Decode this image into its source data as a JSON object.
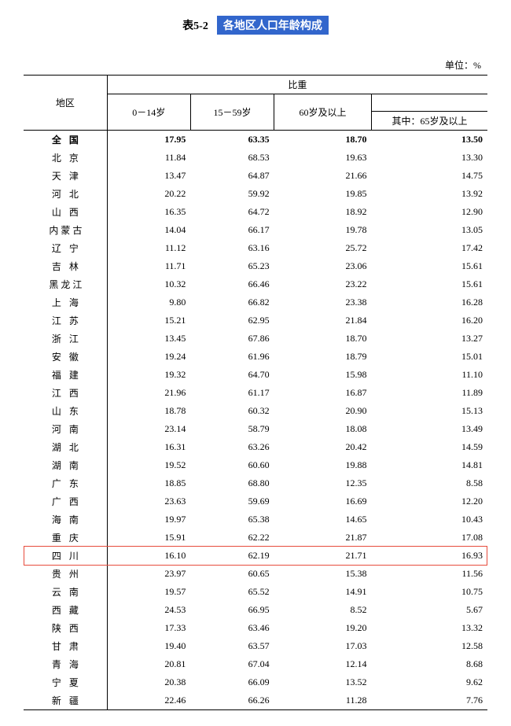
{
  "title_prefix": "表5-2",
  "title_main": "各地区人口年龄构成",
  "unit": "单位：%",
  "header": {
    "region": "地区",
    "proportion": "比重",
    "c0_14": "0－14岁",
    "c15_59": "15－59岁",
    "c60up": "60岁及以上",
    "c65up": "其中：65岁及以上"
  },
  "highlight_region": "四 川",
  "highlight_color": "#e74c3c",
  "title_bg": "#3266cc",
  "rows": [
    {
      "region": "全 国",
      "spacing": "spaced",
      "bold": true,
      "v": [
        "17.95",
        "63.35",
        "18.70",
        "13.50"
      ]
    },
    {
      "region": "北 京",
      "spacing": "spaced",
      "v": [
        "11.84",
        "68.53",
        "19.63",
        "13.30"
      ]
    },
    {
      "region": "天 津",
      "spacing": "spaced",
      "v": [
        "13.47",
        "64.87",
        "21.66",
        "14.75"
      ]
    },
    {
      "region": "河 北",
      "spacing": "spaced",
      "v": [
        "20.22",
        "59.92",
        "19.85",
        "13.92"
      ]
    },
    {
      "region": "山 西",
      "spacing": "spaced",
      "v": [
        "16.35",
        "64.72",
        "18.92",
        "12.90"
      ]
    },
    {
      "region": "内蒙古",
      "spacing": "spaced3",
      "v": [
        "14.04",
        "66.17",
        "19.78",
        "13.05"
      ]
    },
    {
      "region": "辽 宁",
      "spacing": "spaced",
      "v": [
        "11.12",
        "63.16",
        "25.72",
        "17.42"
      ]
    },
    {
      "region": "吉 林",
      "spacing": "spaced",
      "v": [
        "11.71",
        "65.23",
        "23.06",
        "15.61"
      ]
    },
    {
      "region": "黑龙江",
      "spacing": "spaced3",
      "v": [
        "10.32",
        "66.46",
        "23.22",
        "15.61"
      ]
    },
    {
      "region": "上 海",
      "spacing": "spaced",
      "v": [
        "9.80",
        "66.82",
        "23.38",
        "16.28"
      ]
    },
    {
      "region": "江 苏",
      "spacing": "spaced",
      "v": [
        "15.21",
        "62.95",
        "21.84",
        "16.20"
      ]
    },
    {
      "region": "浙 江",
      "spacing": "spaced",
      "v": [
        "13.45",
        "67.86",
        "18.70",
        "13.27"
      ]
    },
    {
      "region": "安 徽",
      "spacing": "spaced",
      "v": [
        "19.24",
        "61.96",
        "18.79",
        "15.01"
      ]
    },
    {
      "region": "福 建",
      "spacing": "spaced",
      "v": [
        "19.32",
        "64.70",
        "15.98",
        "11.10"
      ]
    },
    {
      "region": "江 西",
      "spacing": "spaced",
      "v": [
        "21.96",
        "61.17",
        "16.87",
        "11.89"
      ]
    },
    {
      "region": "山 东",
      "spacing": "spaced",
      "v": [
        "18.78",
        "60.32",
        "20.90",
        "15.13"
      ]
    },
    {
      "region": "河 南",
      "spacing": "spaced",
      "v": [
        "23.14",
        "58.79",
        "18.08",
        "13.49"
      ]
    },
    {
      "region": "湖 北",
      "spacing": "spaced",
      "v": [
        "16.31",
        "63.26",
        "20.42",
        "14.59"
      ]
    },
    {
      "region": "湖 南",
      "spacing": "spaced",
      "v": [
        "19.52",
        "60.60",
        "19.88",
        "14.81"
      ]
    },
    {
      "region": "广 东",
      "spacing": "spaced",
      "v": [
        "18.85",
        "68.80",
        "12.35",
        "8.58"
      ]
    },
    {
      "region": "广 西",
      "spacing": "spaced",
      "v": [
        "23.63",
        "59.69",
        "16.69",
        "12.20"
      ]
    },
    {
      "region": "海 南",
      "spacing": "spaced",
      "v": [
        "19.97",
        "65.38",
        "14.65",
        "10.43"
      ]
    },
    {
      "region": "重 庆",
      "spacing": "spaced",
      "v": [
        "15.91",
        "62.22",
        "21.87",
        "17.08"
      ]
    },
    {
      "region": "四 川",
      "spacing": "spaced",
      "highlight": true,
      "v": [
        "16.10",
        "62.19",
        "21.71",
        "16.93"
      ]
    },
    {
      "region": "贵 州",
      "spacing": "spaced",
      "v": [
        "23.97",
        "60.65",
        "15.38",
        "11.56"
      ]
    },
    {
      "region": "云 南",
      "spacing": "spaced",
      "v": [
        "19.57",
        "65.52",
        "14.91",
        "10.75"
      ]
    },
    {
      "region": "西 藏",
      "spacing": "spaced",
      "v": [
        "24.53",
        "66.95",
        "8.52",
        "5.67"
      ]
    },
    {
      "region": "陕 西",
      "spacing": "spaced",
      "v": [
        "17.33",
        "63.46",
        "19.20",
        "13.32"
      ]
    },
    {
      "region": "甘 肃",
      "spacing": "spaced",
      "v": [
        "19.40",
        "63.57",
        "17.03",
        "12.58"
      ]
    },
    {
      "region": "青 海",
      "spacing": "spaced",
      "v": [
        "20.81",
        "67.04",
        "12.14",
        "8.68"
      ]
    },
    {
      "region": "宁 夏",
      "spacing": "spaced",
      "v": [
        "20.38",
        "66.09",
        "13.52",
        "9.62"
      ]
    },
    {
      "region": "新 疆",
      "spacing": "spaced",
      "v": [
        "22.46",
        "66.26",
        "11.28",
        "7.76"
      ]
    }
  ]
}
